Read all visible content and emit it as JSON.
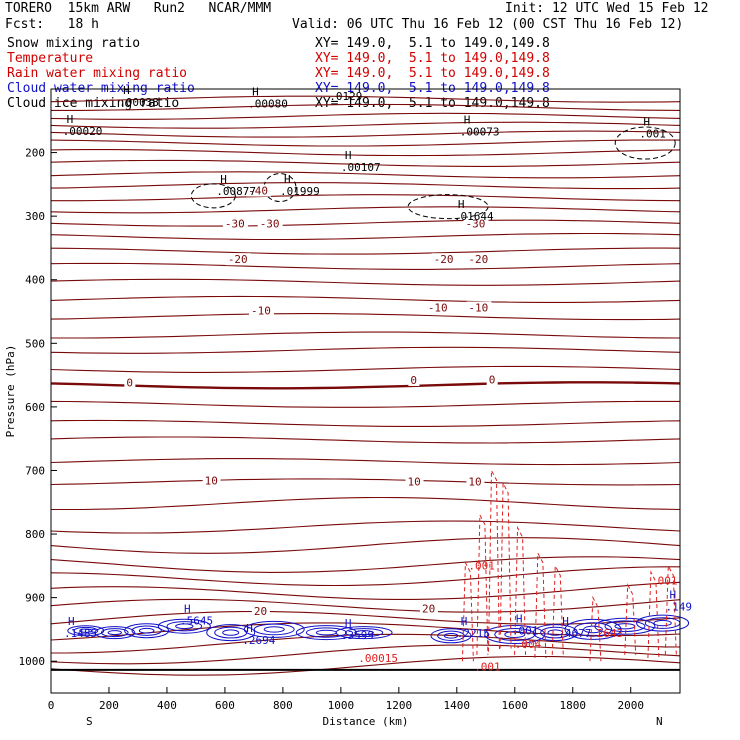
{
  "header": {
    "model": "TORERO  15km ARW   Run2   NCAR/MMM",
    "init": "Init: 12 UTC Wed 15 Feb 12",
    "fcst": "Fcst:   18 h",
    "valid": "Valid: 06 UTC Thu 16 Feb 12 (00 CST Thu 16 Feb 12)"
  },
  "legend": [
    {
      "name": "Snow mixing ratio",
      "xy": "XY= 149.0,  5.1 to 149.0,149.8",
      "name_color": "#000000",
      "xy_color": "#000000"
    },
    {
      "name": "Temperature",
      "xy": "XY= 149.0,  5.1 to 149.0,149.8",
      "name_color": "#d00000",
      "xy_color": "#d00000"
    },
    {
      "name": "Rain water mixing ratio",
      "xy": "XY= 149.0,  5.1 to 149.0,149.8",
      "name_color": "#d00000",
      "xy_color": "#d00000"
    },
    {
      "name": "Cloud water mixing ratio",
      "xy": "XY= 149.0,  5.1 to 149.0,149.8",
      "name_color": "#1010c8",
      "xy_color": "#1010c8"
    },
    {
      "name": "Cloud ice mixing ratio",
      "xy": "XY= 149.0,  5.1 to 149.0,149.8",
      "name_color": "#000000",
      "xy_color": "#000000"
    }
  ],
  "colors": {
    "temperature": "#7a0a0a",
    "rain": "#e02020",
    "cloud_water": "#1010c8",
    "snow": "#000000"
  },
  "chart_data": {
    "type": "cross-section",
    "xlabel": "Distance (km)",
    "ylabel": "Pressure (hPa)",
    "xlim": [
      0,
      2170
    ],
    "ylim": [
      1050,
      100
    ],
    "x_ticks": [
      0,
      200,
      400,
      600,
      800,
      1000,
      1200,
      1400,
      1600,
      1800,
      2000
    ],
    "y_ticks": [
      200,
      300,
      400,
      500,
      600,
      700,
      800,
      900,
      1000
    ],
    "x_end_labels": {
      "left": "S",
      "right": "N"
    },
    "temperature_isotherms_hpa": [
      1012,
      993,
      975,
      956,
      937,
      917,
      896,
      873,
      848,
      818,
      789,
      752,
      718,
      686,
      652,
      626,
      596,
      566,
      541,
      511,
      487,
      458,
      431,
      404,
      379,
      355,
      332,
      311,
      290,
      271,
      252,
      235,
      217,
      200,
      185,
      171,
      157,
      143,
      129,
      116
    ],
    "temperature_labels": [
      {
        "text": "0",
        "x": 260,
        "p": 568
      },
      {
        "text": "0",
        "x": 1240,
        "p": 564
      },
      {
        "text": "0",
        "x": 1510,
        "p": 563
      },
      {
        "text": "10",
        "x": 530,
        "p": 722
      },
      {
        "text": "10",
        "x": 1230,
        "p": 724
      },
      {
        "text": "10",
        "x": 1440,
        "p": 724
      },
      {
        "text": "20",
        "x": 700,
        "p": 927
      },
      {
        "text": "20",
        "x": 1280,
        "p": 923
      },
      {
        "text": "-10",
        "x": 690,
        "p": 455
      },
      {
        "text": "-10",
        "x": 1300,
        "p": 450
      },
      {
        "text": "-10",
        "x": 1440,
        "p": 450
      },
      {
        "text": "-20",
        "x": 610,
        "p": 374
      },
      {
        "text": "-20",
        "x": 1320,
        "p": 374
      },
      {
        "text": "-20",
        "x": 1440,
        "p": 374
      },
      {
        "text": "-30",
        "x": 600,
        "p": 318
      },
      {
        "text": "-30",
        "x": 720,
        "p": 318
      },
      {
        "text": "-30",
        "x": 1430,
        "p": 318
      },
      {
        "text": "-40",
        "x": 680,
        "p": 266
      }
    ],
    "snow_maxima": [
      {
        "text": ".00020",
        "x": 40,
        "p": 172
      },
      {
        "text": ".00038",
        "x": 235,
        "p": 127
      },
      {
        "text": ".00080",
        "x": 680,
        "p": 129
      },
      {
        "text": ".00107",
        "x": 1000,
        "p": 229
      },
      {
        "text": ".00877",
        "x": 570,
        "p": 267
      },
      {
        "text": ".01999",
        "x": 790,
        "p": 267
      },
      {
        "text": ".01644",
        "x": 1390,
        "p": 306
      },
      {
        "text": ".00073",
        "x": 1410,
        "p": 173
      },
      {
        "text": ".001",
        "x": 2030,
        "p": 176
      }
    ],
    "cloud_water_maxima": [
      {
        "text": ".1485",
        "x": 45,
        "p": 962
      },
      {
        "text": ".5645",
        "x": 445,
        "p": 942
      },
      {
        "text": ".2694",
        "x": 660,
        "p": 973
      },
      {
        "text": ".3599",
        "x": 1000,
        "p": 965
      },
      {
        "text": ".2215",
        "x": 1400,
        "p": 962
      },
      {
        "text": ".001",
        "x": 1590,
        "p": 958
      },
      {
        "text": ".4677",
        "x": 1750,
        "p": 962
      },
      {
        "text": ".149",
        "x": 2120,
        "p": 920
      }
    ],
    "rain_maxima": [
      {
        "text": ".00015",
        "x": 1060,
        "p": 1001
      },
      {
        "text": ".001",
        "x": 1440,
        "p": 856
      },
      {
        "text": ".004",
        "x": 1600,
        "p": 979
      },
      {
        "text": ".2643",
        "x": 1860,
        "p": 962
      },
      {
        "text": ".001",
        "x": 2070,
        "p": 879
      },
      {
        "text": ".001",
        "x": 1460,
        "p": 1015
      }
    ],
    "extra_labels": [
      {
        "text": ".0129",
        "x": 960,
        "p": 117
      }
    ]
  }
}
